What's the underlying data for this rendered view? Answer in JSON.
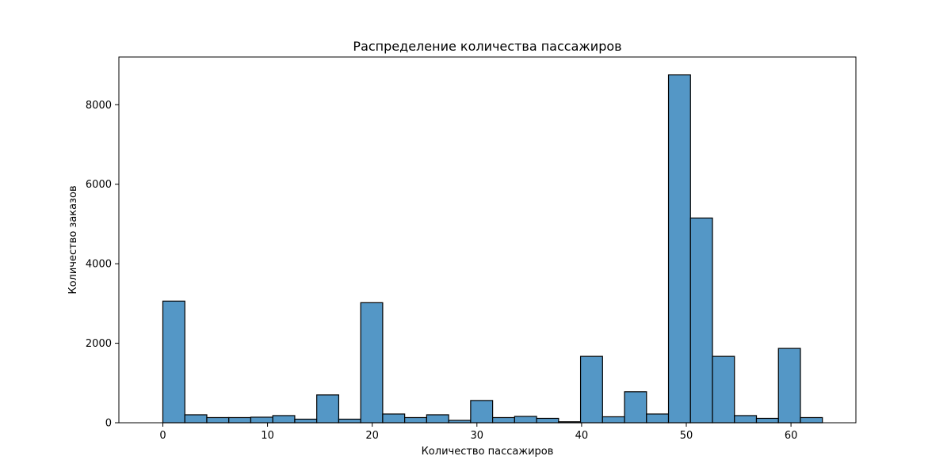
{
  "chart_data": {
    "type": "bar",
    "title": "Распределение количества пассажиров",
    "xlabel": "Количество пассажиров",
    "ylabel": "Количество заказов",
    "xlim": [
      -4.2,
      66.2
    ],
    "ylim": [
      0,
      9200
    ],
    "xticks": [
      0,
      10,
      20,
      30,
      40,
      50,
      60
    ],
    "yticks": [
      0,
      2000,
      4000,
      6000,
      8000
    ],
    "bin_edges": [
      0,
      2.1,
      4.2,
      6.3,
      8.4,
      10.5,
      12.6,
      14.7,
      16.8,
      18.9,
      21.0,
      23.1,
      25.2,
      27.3,
      29.4,
      31.5,
      33.6,
      35.7,
      37.8,
      39.9,
      42.0,
      44.1,
      46.2,
      48.3,
      50.4,
      52.5,
      54.6,
      56.7,
      58.8,
      60.9,
      63.0
    ],
    "values": [
      3060,
      200,
      130,
      130,
      140,
      180,
      90,
      700,
      90,
      3020,
      220,
      130,
      200,
      60,
      560,
      130,
      160,
      110,
      25,
      1670,
      150,
      780,
      220,
      8750,
      5150,
      1670,
      180,
      110,
      1870,
      130
    ],
    "bar_color": "#5497c6",
    "edge_color": "#000000",
    "grid": false
  }
}
